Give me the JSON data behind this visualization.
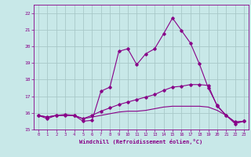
{
  "xlabel": "Windchill (Refroidissement éolien,°C)",
  "xlim": [
    -0.5,
    23.5
  ],
  "ylim": [
    15,
    22.5
  ],
  "yticks": [
    15,
    16,
    17,
    18,
    19,
    20,
    21,
    22
  ],
  "xticks": [
    0,
    1,
    2,
    3,
    4,
    5,
    6,
    7,
    8,
    9,
    10,
    11,
    12,
    13,
    14,
    15,
    16,
    17,
    18,
    19,
    20,
    21,
    22,
    23
  ],
  "bg_color": "#c8e8e8",
  "grid_color": "#a8c8c8",
  "line_color": "#880088",
  "line1_y": [
    15.85,
    15.65,
    15.85,
    15.9,
    15.85,
    15.5,
    15.55,
    17.3,
    17.55,
    19.7,
    19.85,
    18.9,
    19.55,
    19.85,
    20.75,
    21.7,
    20.95,
    20.2,
    18.95,
    17.5,
    16.45,
    15.85,
    15.35,
    15.5
  ],
  "line2_y": [
    15.85,
    15.75,
    15.85,
    15.85,
    15.85,
    15.65,
    15.85,
    16.1,
    16.3,
    16.5,
    16.65,
    16.8,
    16.95,
    17.1,
    17.35,
    17.55,
    17.6,
    17.7,
    17.7,
    17.65,
    16.4,
    15.85,
    15.45,
    15.5
  ],
  "line3_y": [
    15.85,
    15.75,
    15.85,
    15.85,
    15.85,
    15.65,
    15.75,
    15.85,
    15.95,
    16.05,
    16.1,
    16.1,
    16.15,
    16.25,
    16.35,
    16.4,
    16.4,
    16.4,
    16.4,
    16.35,
    16.15,
    15.85,
    15.45,
    15.5
  ]
}
